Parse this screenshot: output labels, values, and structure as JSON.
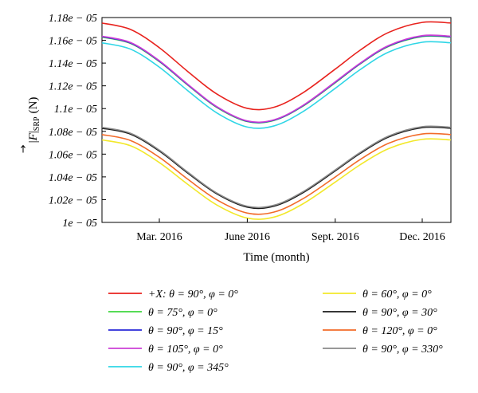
{
  "chart_data": {
    "type": "line",
    "title": "",
    "xlabel": "Time (month)",
    "ylabel": "|F|SRP (N)",
    "ylabel_parts": {
      "vector": "F",
      "subscript": "SRP",
      "unit": "(N)"
    },
    "xlim": [
      0,
      365
    ],
    "ylim": [
      1e-05,
      1.18e-05
    ],
    "x_ticks": [
      {
        "value": 60,
        "label": "Mar. 2016"
      },
      {
        "value": 152,
        "label": "June 2016"
      },
      {
        "value": 244,
        "label": "Sept. 2016"
      },
      {
        "value": 335,
        "label": "Dec. 2016"
      }
    ],
    "y_ticks": [
      {
        "value": 1e-05,
        "label": "1e − 05"
      },
      {
        "value": 1.02e-05,
        "label": "1.02e − 05"
      },
      {
        "value": 1.04e-05,
        "label": "1.04e − 05"
      },
      {
        "value": 1.06e-05,
        "label": "1.06e − 05"
      },
      {
        "value": 1.08e-05,
        "label": "1.08e − 05"
      },
      {
        "value": 1.1e-05,
        "label": "1.1e − 05"
      },
      {
        "value": 1.12e-05,
        "label": "1.12e − 05"
      },
      {
        "value": 1.14e-05,
        "label": "1.14e − 05"
      },
      {
        "value": 1.16e-05,
        "label": "1.16e − 05"
      },
      {
        "value": 1.18e-05,
        "label": "1.18e − 05"
      }
    ],
    "x": [
      0,
      30,
      60,
      90,
      120,
      152,
      180,
      210,
      244,
      270,
      300,
      335,
      365
    ],
    "series": [
      {
        "name": "+X: θ = 90°, φ = 0°",
        "color": "#e8231e",
        "values": [
          1.1752e-05,
          1.1695e-05,
          1.1535e-05,
          1.1324e-05,
          1.1129e-05,
          1.1002e-05,
          1.1012e-05,
          1.1138e-05,
          1.1347e-05,
          1.1513e-05,
          1.167e-05,
          1.1757e-05,
          1.1752e-05
        ]
      },
      {
        "name": "θ = 75°, φ = 0°",
        "color": "#3ed63e",
        "values": [
          1.1628e-05,
          1.1572e-05,
          1.1413e-05,
          1.1205e-05,
          1.1011e-05,
          1.0886e-05,
          1.0896e-05,
          1.102e-05,
          1.1227e-05,
          1.1392e-05,
          1.1547e-05,
          1.1633e-05,
          1.1628e-05
        ]
      },
      {
        "name": "θ = 90°, φ = 15°",
        "color": "#2a2ad8",
        "values": [
          1.1632e-05,
          1.1576e-05,
          1.1417e-05,
          1.1208e-05,
          1.1015e-05,
          1.0889e-05,
          1.0899e-05,
          1.1024e-05,
          1.1231e-05,
          1.1395e-05,
          1.1551e-05,
          1.1637e-05,
          1.1632e-05
        ]
      },
      {
        "name": "θ = 105°, φ = 0°",
        "color": "#cc3fd6",
        "values": [
          1.1636e-05,
          1.158e-05,
          1.1421e-05,
          1.1212e-05,
          1.1018e-05,
          1.0892e-05,
          1.0902e-05,
          1.1027e-05,
          1.1235e-05,
          1.1399e-05,
          1.1555e-05,
          1.1641e-05,
          1.1636e-05
        ]
      },
      {
        "name": "θ = 90°, φ = 345°",
        "color": "#2fd6e6",
        "values": [
          1.1578e-05,
          1.1522e-05,
          1.1364e-05,
          1.1156e-05,
          1.0963e-05,
          1.0838e-05,
          1.0848e-05,
          1.0972e-05,
          1.1178e-05,
          1.1342e-05,
          1.1497e-05,
          1.1583e-05,
          1.1578e-05
        ]
      },
      {
        "name": "θ = 60°, φ = 0°",
        "color": "#f2e82a",
        "values": [
          1.0725e-05,
          1.0673e-05,
          1.0526e-05,
          1.0333e-05,
          1.0154e-05,
          1.0038e-05,
          1.0047e-05,
          1.0162e-05,
          1.0354e-05,
          1.0506e-05,
          1.0649e-05,
          1.073e-05,
          1.0725e-05
        ]
      },
      {
        "name": "θ = 90°, φ = 30°",
        "color": "#1a1a1a",
        "values": [
          1.0828e-05,
          1.0775e-05,
          1.0627e-05,
          1.0432e-05,
          1.0252e-05,
          1.0134e-05,
          1.0143e-05,
          1.026e-05,
          1.0453e-05,
          1.0606e-05,
          1.0751e-05,
          1.0833e-05,
          1.0828e-05
        ]
      },
      {
        "name": "θ = 120°, φ = 0°",
        "color": "#f26b2a",
        "values": [
          1.0772e-05,
          1.0719e-05,
          1.0572e-05,
          1.0378e-05,
          1.0199e-05,
          1.0082e-05,
          1.0091e-05,
          1.0207e-05,
          1.0399e-05,
          1.0552e-05,
          1.0696e-05,
          1.0777e-05,
          1.0772e-05
        ]
      },
      {
        "name": "θ = 90°, φ = 330°",
        "color": "#8a8a8a",
        "values": [
          1.0836e-05,
          1.0783e-05,
          1.0635e-05,
          1.044e-05,
          1.0259e-05,
          1.0142e-05,
          1.0151e-05,
          1.0268e-05,
          1.0461e-05,
          1.0614e-05,
          1.0759e-05,
          1.0841e-05,
          1.0836e-05
        ]
      }
    ],
    "legend": {
      "columns": [
        [
          "+X: θ = 90°, φ = 0°",
          "θ = 75°, φ = 0°",
          "θ = 90°, φ = 15°",
          "θ = 105°, φ = 0°",
          "θ = 90°, φ = 345°"
        ],
        [
          "θ = 60°, φ = 0°",
          "θ = 90°, φ = 30°",
          "θ = 120°, φ = 0°",
          "θ = 90°, φ = 330°"
        ]
      ],
      "placement": "bottom"
    },
    "grid": false
  }
}
